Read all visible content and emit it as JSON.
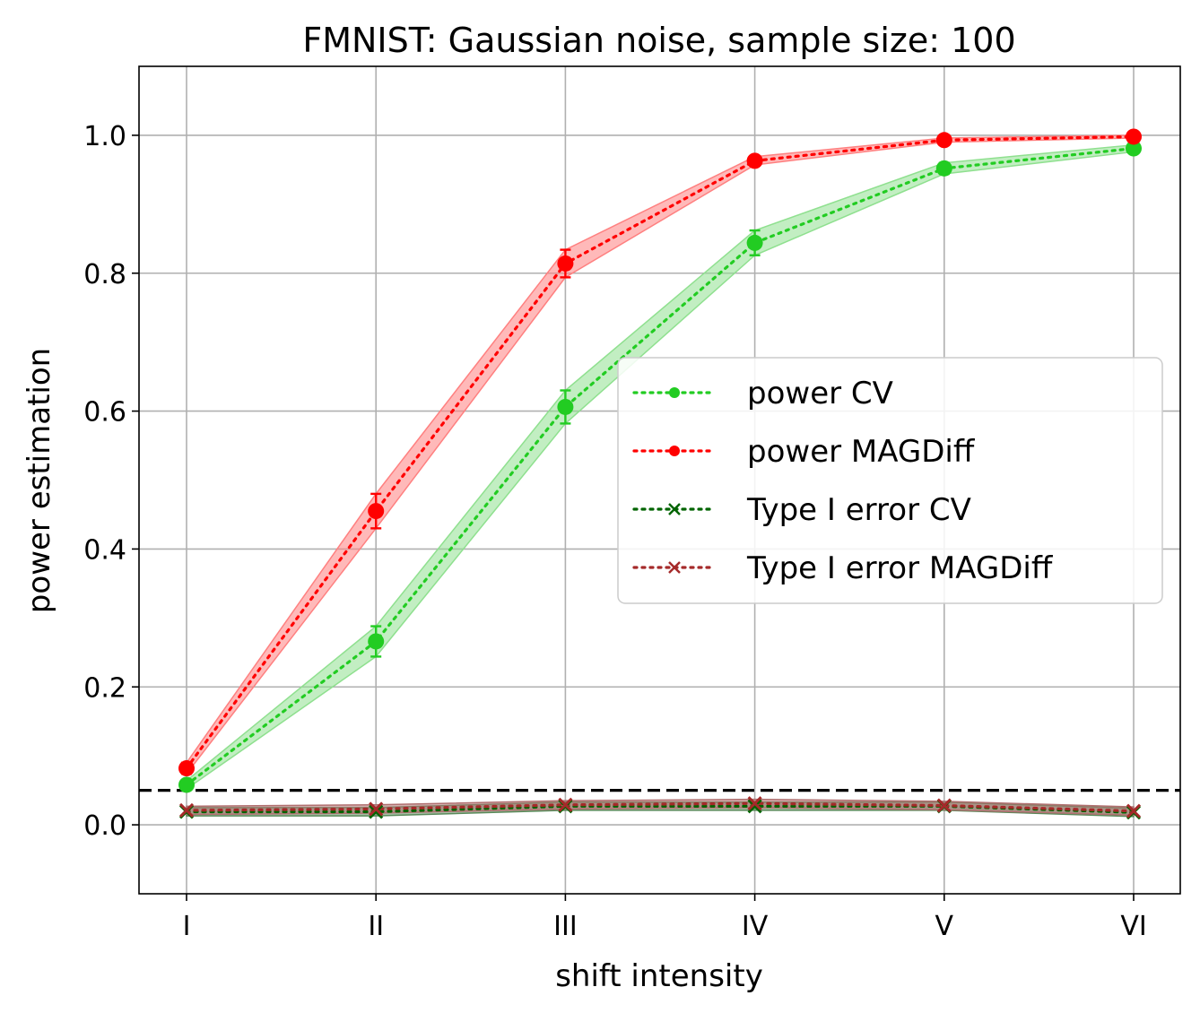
{
  "chart_data": {
    "type": "line",
    "title": "FMNIST: Gaussian noise, sample size: 100",
    "xlabel": "shift intensity",
    "ylabel": "power estimation",
    "categories": [
      "I",
      "II",
      "III",
      "IV",
      "V",
      "VI"
    ],
    "ylim": [
      -0.1,
      1.1
    ],
    "yticks": [
      "0.0",
      "0.2",
      "0.4",
      "0.6",
      "0.8",
      "1.0"
    ],
    "grid": true,
    "legend_position": "center-right",
    "reference_line": {
      "y": 0.05,
      "style": "dashed",
      "color": "#000000"
    },
    "series": [
      {
        "name": "power CV",
        "color": "#22cc22",
        "band_color": "#8fe08f",
        "marker": "circle",
        "values": [
          0.058,
          0.266,
          0.606,
          0.844,
          0.952,
          0.981
        ],
        "error": [
          0.006,
          0.022,
          0.024,
          0.018,
          0.008,
          0.005
        ]
      },
      {
        "name": "power MAGDiff",
        "color": "#ff0000",
        "band_color": "#ff8080",
        "marker": "circle",
        "values": [
          0.082,
          0.455,
          0.814,
          0.963,
          0.993,
          0.998
        ],
        "error": [
          0.008,
          0.025,
          0.02,
          0.006,
          0.003,
          0.002
        ]
      },
      {
        "name": "Type I error CV",
        "color": "#006400",
        "band_color": "#5a8a5a",
        "marker": "x",
        "values": [
          0.019,
          0.019,
          0.027,
          0.027,
          0.027,
          0.018
        ],
        "error": [
          0.006,
          0.006,
          0.006,
          0.006,
          0.006,
          0.006
        ]
      },
      {
        "name": "Type I error MAGDiff",
        "color": "#a52a2a",
        "band_color": "#b07070",
        "marker": "x",
        "values": [
          0.021,
          0.023,
          0.029,
          0.031,
          0.028,
          0.02
        ],
        "error": [
          0.006,
          0.006,
          0.006,
          0.006,
          0.006,
          0.006
        ]
      }
    ]
  }
}
